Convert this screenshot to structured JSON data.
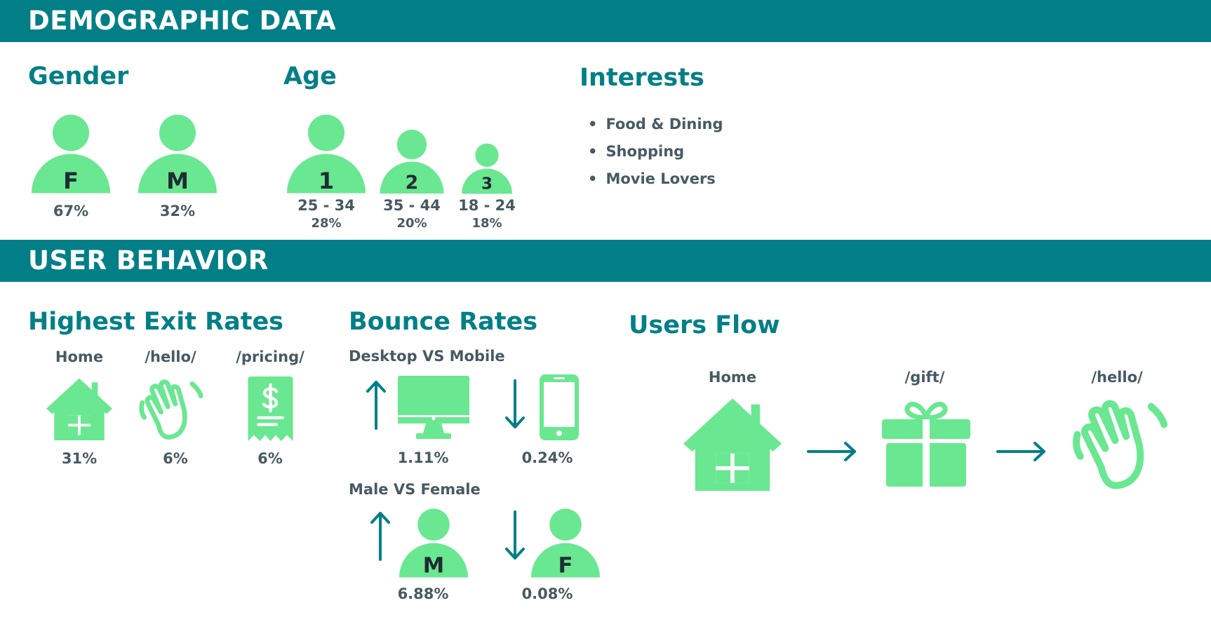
{
  "demographic": {
    "title": "DEMOGRAPHIC DATA",
    "gender": {
      "title": "Gender",
      "items": [
        {
          "letter": "F",
          "percent": "67%"
        },
        {
          "letter": "M",
          "percent": "32%"
        }
      ]
    },
    "age": {
      "title": "Age",
      "items": [
        {
          "rank": "1",
          "range": "25 - 34",
          "percent": "28%"
        },
        {
          "rank": "2",
          "range": "35 - 44",
          "percent": "20%"
        },
        {
          "rank": "3",
          "range": "18 - 24",
          "percent": "18%"
        }
      ]
    },
    "interests": {
      "title": "Interests",
      "items": [
        "Food & Dining",
        "Shopping",
        "Movie Lovers"
      ]
    }
  },
  "behavior": {
    "title": "USER BEHAVIOR",
    "exit_rates": {
      "title": "Highest Exit Rates",
      "items": [
        {
          "page": "Home",
          "icon": "home-icon",
          "percent": "31%"
        },
        {
          "page": "/hello/",
          "icon": "waving-hand-icon",
          "percent": "6%"
        },
        {
          "page": "/pricing/",
          "icon": "receipt-dollar-icon",
          "percent": "6%"
        }
      ]
    },
    "bounce_rates": {
      "title": "Bounce Rates",
      "desktop_mobile": {
        "label": "Desktop VS Mobile",
        "desktop": {
          "icon": "desktop-icon",
          "trend": "up",
          "value": "1.11%"
        },
        "mobile": {
          "icon": "mobile-icon",
          "trend": "down",
          "value": "0.24%"
        }
      },
      "male_female": {
        "label": "Male VS Female",
        "male": {
          "letter": "M",
          "trend": "up",
          "value": "6.88%"
        },
        "female": {
          "letter": "F",
          "trend": "down",
          "value": "0.08%"
        }
      }
    },
    "users_flow": {
      "title": "Users Flow",
      "steps": [
        {
          "label": "Home",
          "icon": "home-icon"
        },
        {
          "label": "/gift/",
          "icon": "gift-icon"
        },
        {
          "label": "/hello/",
          "icon": "waving-hand-icon"
        }
      ]
    }
  },
  "colors": {
    "teal": "#027f86",
    "green": "#6ae791",
    "text": "#465a63",
    "dark": "#1f2d33"
  }
}
